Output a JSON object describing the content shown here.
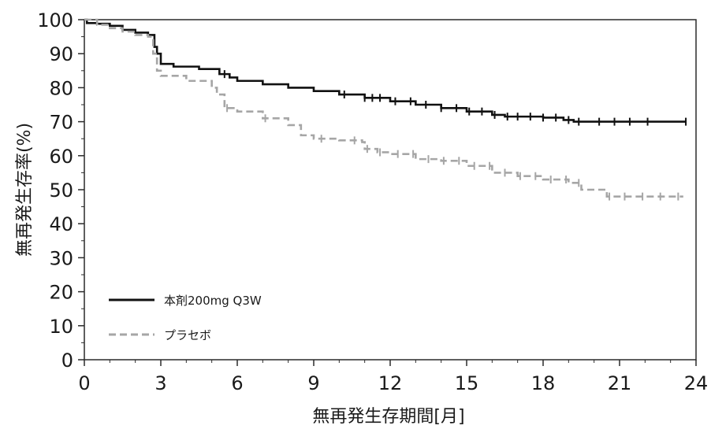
{
  "chart_data": {
    "type": "line",
    "xlabel": "無再発生存期間[月]",
    "ylabel": "無再発生存率(%)",
    "xlim": [
      0,
      24
    ],
    "ylim": [
      0,
      100
    ],
    "x_ticks": [
      0,
      3,
      6,
      9,
      12,
      15,
      18,
      21,
      24
    ],
    "y_ticks": [
      0,
      10,
      20,
      30,
      40,
      50,
      60,
      70,
      80,
      90,
      100
    ],
    "grid": false,
    "legend_position": "bottom-left",
    "series": [
      {
        "name": "本剤200mg Q3W",
        "color": "#111111",
        "dash": "solid",
        "points": [
          [
            0,
            100
          ],
          [
            0.1,
            99
          ],
          [
            0.5,
            98.8
          ],
          [
            1.0,
            98.2
          ],
          [
            1.5,
            97
          ],
          [
            2.0,
            96.2
          ],
          [
            2.5,
            95.5
          ],
          [
            2.75,
            92
          ],
          [
            2.85,
            90
          ],
          [
            3.0,
            87
          ],
          [
            3.5,
            86.2
          ],
          [
            4.5,
            85.5
          ],
          [
            5.3,
            84
          ],
          [
            5.7,
            83
          ],
          [
            6.0,
            82
          ],
          [
            7.0,
            81
          ],
          [
            8.0,
            80
          ],
          [
            9.0,
            79
          ],
          [
            10.0,
            78
          ],
          [
            11.0,
            77
          ],
          [
            12.0,
            76
          ],
          [
            13.0,
            75
          ],
          [
            14.0,
            74
          ],
          [
            15.0,
            73
          ],
          [
            16.0,
            72
          ],
          [
            16.5,
            71.5
          ],
          [
            17.0,
            71.5
          ],
          [
            18.0,
            71.2
          ],
          [
            18.8,
            70.5
          ],
          [
            19.2,
            70
          ],
          [
            20.0,
            70
          ],
          [
            22.0,
            70
          ],
          [
            23.6,
            70
          ]
        ],
        "censor_x": [
          5.5,
          10.2,
          11.0,
          11.3,
          11.6,
          12.2,
          12.8,
          13.4,
          14.0,
          14.6,
          15.1,
          15.6,
          16.1,
          16.6,
          17.0,
          17.5,
          18.0,
          18.5,
          19.0,
          19.4,
          20.2,
          20.8,
          21.4,
          22.1,
          23.6
        ]
      },
      {
        "name": "プラセボ",
        "color": "#a6a6a6",
        "dash": "dashed",
        "points": [
          [
            0,
            100
          ],
          [
            0.5,
            98.5
          ],
          [
            1.0,
            97.5
          ],
          [
            1.5,
            96.5
          ],
          [
            2.0,
            95.5
          ],
          [
            2.5,
            95
          ],
          [
            2.7,
            90
          ],
          [
            2.85,
            85
          ],
          [
            3.0,
            83.5
          ],
          [
            4.0,
            82
          ],
          [
            5.0,
            80
          ],
          [
            5.2,
            78
          ],
          [
            5.5,
            74
          ],
          [
            6.0,
            73
          ],
          [
            7.0,
            71
          ],
          [
            8.0,
            69
          ],
          [
            8.5,
            66
          ],
          [
            9.0,
            65
          ],
          [
            10.0,
            64.5
          ],
          [
            10.9,
            64
          ],
          [
            11.0,
            62
          ],
          [
            11.5,
            61
          ],
          [
            12.0,
            60.5
          ],
          [
            13.0,
            59
          ],
          [
            14.0,
            58.5
          ],
          [
            15.0,
            57
          ],
          [
            16.0,
            55
          ],
          [
            17.0,
            54
          ],
          [
            18.0,
            53
          ],
          [
            19.0,
            52
          ],
          [
            19.5,
            50
          ],
          [
            20.5,
            48
          ],
          [
            23.5,
            48
          ]
        ],
        "censor_x": [
          5.6,
          7.1,
          9.3,
          10.6,
          11.1,
          11.6,
          12.3,
          12.9,
          13.5,
          14.1,
          14.7,
          15.3,
          15.9,
          16.5,
          17.1,
          17.7,
          18.3,
          18.9,
          19.4,
          20.6,
          21.2,
          21.9,
          22.6,
          23.3
        ]
      }
    ]
  }
}
